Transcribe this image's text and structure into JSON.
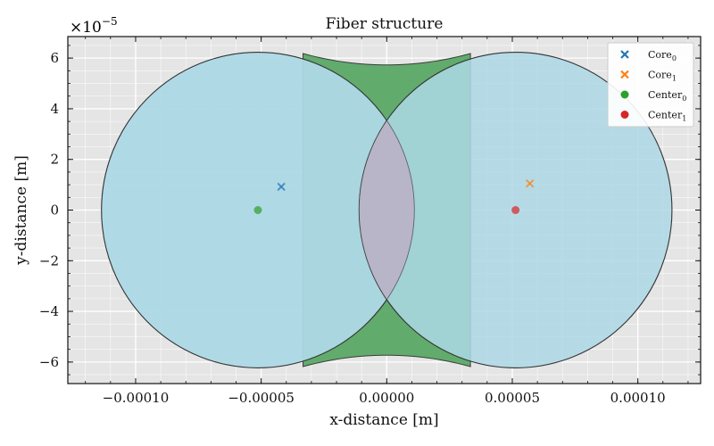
{
  "chart_data": {
    "type": "scatter",
    "title": "Fiber structure",
    "xlabel": "x-distance [m]",
    "ylabel": "y-distance [m]",
    "offset_text": "×10",
    "offset_exponent": "−5",
    "xlim": [
      -0.000127,
      0.000125
    ],
    "ylim": [
      -6.85e-05,
      6.85e-05
    ],
    "x_ticks": [
      -0.0001,
      -5e-05,
      0.0,
      5e-05,
      0.0001
    ],
    "x_tick_labels": [
      "−0.00010",
      "−0.00005",
      "0.00000",
      "0.00005",
      "0.00010"
    ],
    "y_ticks": [
      -6e-05,
      -4e-05,
      -2e-05,
      0.0,
      2e-05,
      4e-05,
      6e-05
    ],
    "y_tick_labels": [
      "−6",
      "−4",
      "−2",
      "0",
      "2",
      "4",
      "6"
    ],
    "grid": true,
    "legend_position": "top-right",
    "fibers": [
      {
        "center_x": -5.13e-05,
        "center_y": 0.0,
        "radius": 6.23e-05
      },
      {
        "center_x": 5.13e-05,
        "center_y": 0.0,
        "radius": 6.23e-05
      }
    ],
    "series": [
      {
        "name": "Core",
        "sub": "0",
        "marker": "x",
        "color": "#1f77b4",
        "x": [
          -4.2e-05
        ],
        "y": [
          9.2e-06
        ]
      },
      {
        "name": "Core",
        "sub": "1",
        "marker": "x",
        "color": "#ff7f0e",
        "x": [
          5.7e-05
        ],
        "y": [
          1.05e-05
        ]
      },
      {
        "name": "Center",
        "sub": "0",
        "marker": "o",
        "color": "#2ca02c",
        "x": [
          -5.13e-05
        ],
        "y": [
          0.0
        ]
      },
      {
        "name": "Center",
        "sub": "1",
        "marker": "o",
        "color": "#d62728",
        "x": [
          5.13e-05
        ],
        "y": [
          0.0
        ]
      }
    ],
    "colors": {
      "background": "#e5e5e5",
      "grid": "#ffffff",
      "fiber_fill": "#add8e6",
      "overlap_fill": "#b8b5c8",
      "cladding_fill": "#5aa866",
      "edge": "#333333"
    }
  }
}
